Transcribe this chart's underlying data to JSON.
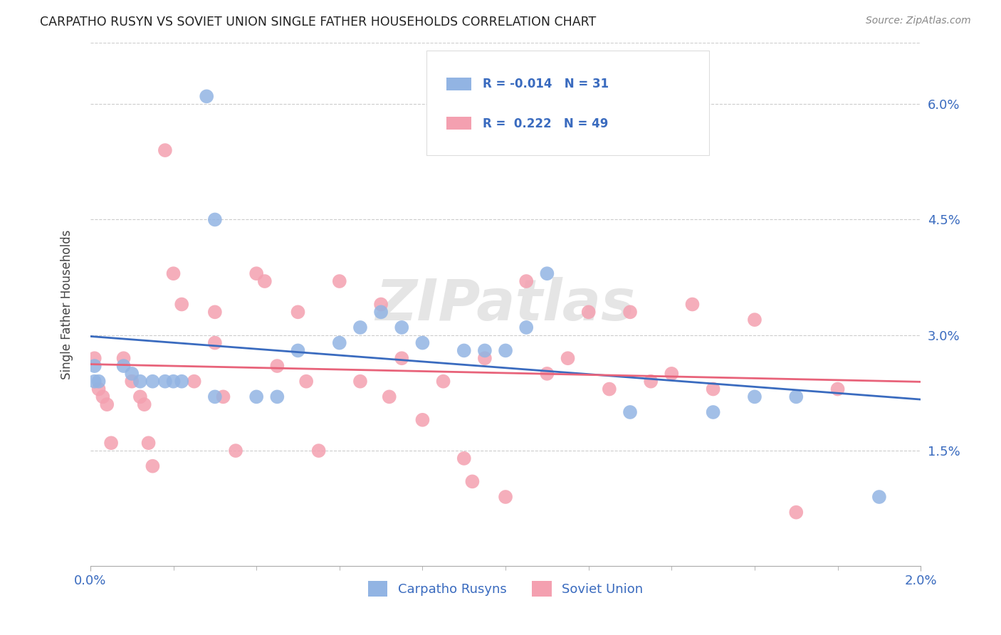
{
  "title": "CARPATHO RUSYN VS SOVIET UNION SINGLE FATHER HOUSEHOLDS CORRELATION CHART",
  "source": "Source: ZipAtlas.com",
  "ylabel": "Single Father Households",
  "xlim": [
    0.0,
    0.02
  ],
  "ylim": [
    0.0,
    0.068
  ],
  "xticks": [
    0.0,
    0.02
  ],
  "xtick_labels": [
    "0.0%",
    "2.0%"
  ],
  "yticks": [
    0.015,
    0.03,
    0.045,
    0.06
  ],
  "ytick_labels": [
    "1.5%",
    "3.0%",
    "4.5%",
    "6.0%"
  ],
  "blue_R": "-0.014",
  "blue_N": "31",
  "pink_R": "0.222",
  "pink_N": "49",
  "blue_color": "#92b4e3",
  "pink_color": "#f4a0b0",
  "blue_line_color": "#3a6bbf",
  "pink_line_color": "#e8637a",
  "grid_color": "#cccccc",
  "background_color": "#ffffff",
  "watermark_text": "ZIPatlas",
  "legend_label_blue": "Carpatho Rusyns",
  "legend_label_pink": "Soviet Union",
  "blue_scatter_x": [
    0.0028,
    0.0001,
    0.0001,
    0.0002,
    0.0008,
    0.001,
    0.0012,
    0.0015,
    0.0018,
    0.002,
    0.0022,
    0.003,
    0.003,
    0.004,
    0.0045,
    0.005,
    0.006,
    0.0065,
    0.007,
    0.0075,
    0.008,
    0.009,
    0.0095,
    0.01,
    0.0105,
    0.011,
    0.013,
    0.015,
    0.016,
    0.017,
    0.019
  ],
  "blue_scatter_y": [
    0.061,
    0.026,
    0.024,
    0.024,
    0.026,
    0.025,
    0.024,
    0.024,
    0.024,
    0.024,
    0.024,
    0.022,
    0.045,
    0.022,
    0.022,
    0.028,
    0.029,
    0.031,
    0.033,
    0.031,
    0.029,
    0.028,
    0.028,
    0.028,
    0.031,
    0.038,
    0.02,
    0.02,
    0.022,
    0.022,
    0.009
  ],
  "pink_scatter_x": [
    0.0001,
    0.0002,
    0.0003,
    0.0004,
    0.0005,
    0.0008,
    0.001,
    0.0012,
    0.0013,
    0.0014,
    0.0015,
    0.0018,
    0.002,
    0.0022,
    0.0025,
    0.003,
    0.003,
    0.0032,
    0.0035,
    0.004,
    0.0042,
    0.0045,
    0.005,
    0.0052,
    0.0055,
    0.006,
    0.0065,
    0.007,
    0.0072,
    0.0075,
    0.008,
    0.0085,
    0.009,
    0.0092,
    0.0095,
    0.01,
    0.0105,
    0.011,
    0.0115,
    0.012,
    0.0125,
    0.013,
    0.0135,
    0.014,
    0.0145,
    0.015,
    0.016,
    0.017,
    0.018
  ],
  "pink_scatter_y": [
    0.027,
    0.023,
    0.022,
    0.021,
    0.016,
    0.027,
    0.024,
    0.022,
    0.021,
    0.016,
    0.013,
    0.054,
    0.038,
    0.034,
    0.024,
    0.033,
    0.029,
    0.022,
    0.015,
    0.038,
    0.037,
    0.026,
    0.033,
    0.024,
    0.015,
    0.037,
    0.024,
    0.034,
    0.022,
    0.027,
    0.019,
    0.024,
    0.014,
    0.011,
    0.027,
    0.009,
    0.037,
    0.025,
    0.027,
    0.033,
    0.023,
    0.033,
    0.024,
    0.025,
    0.034,
    0.023,
    0.032,
    0.007,
    0.023
  ]
}
